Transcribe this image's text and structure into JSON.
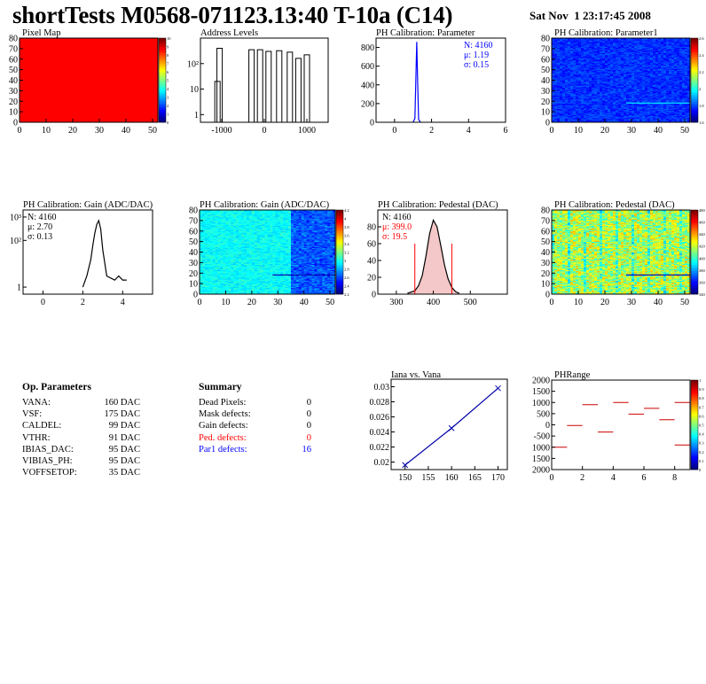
{
  "header": {
    "title": "shortTests M0568-071123.13:40 T-10a (C14)",
    "date": "Sat Nov  1 23:17:45 2008"
  },
  "chart_data": [
    {
      "id": "pixel-map",
      "type": "heatmap",
      "title": "Pixel Map",
      "xlim": [
        0,
        52
      ],
      "ylim": [
        0,
        80
      ],
      "xticks": [
        0,
        10,
        20,
        30,
        40,
        50
      ],
      "yticks": [
        0,
        10,
        20,
        30,
        40,
        50,
        60,
        70,
        80
      ],
      "zlim": [
        0,
        10
      ],
      "zticks": [
        0,
        1,
        2,
        3,
        4,
        5,
        6,
        7,
        8,
        9,
        10
      ],
      "fill_color": "#ff0000"
    },
    {
      "id": "address-levels",
      "type": "bar",
      "title": "Address Levels",
      "xlim": [
        -1500,
        1500
      ],
      "ylog": true,
      "ylim": [
        0.5,
        1000
      ],
      "xticks": [
        -1000,
        0,
        1000
      ],
      "yticks": [
        "1",
        "10",
        "10²"
      ],
      "peaks": [
        {
          "x": -1100,
          "y": 20
        },
        {
          "x": -1050,
          "y": 400
        },
        {
          "x": -300,
          "y": 350
        },
        {
          "x": -100,
          "y": 350
        },
        {
          "x": 100,
          "y": 300
        },
        {
          "x": 350,
          "y": 320
        },
        {
          "x": 600,
          "y": 280
        },
        {
          "x": 800,
          "y": 160
        },
        {
          "x": 1000,
          "y": 220
        }
      ]
    },
    {
      "id": "ph-cal-parameter",
      "type": "line",
      "title": "PH Calibration: Parameter",
      "xlim": [
        -1,
        6
      ],
      "ylim": [
        0,
        900
      ],
      "xticks": [
        0,
        2,
        4,
        6
      ],
      "yticks": [
        0,
        200,
        400,
        600,
        800
      ],
      "x": [
        1.0,
        1.1,
        1.15,
        1.2,
        1.25,
        1.3,
        1.4
      ],
      "y": [
        0,
        40,
        450,
        860,
        420,
        30,
        0
      ],
      "stats": [
        "N: 4160",
        "μ: 1.19",
        "σ: 0.15"
      ],
      "stats_color": "#0000ff"
    },
    {
      "id": "ph-cal-parameter1",
      "type": "heatmap",
      "title": "PH Calibration: Parameter1",
      "xlim": [
        0,
        52
      ],
      "ylim": [
        0,
        80
      ],
      "xticks": [
        0,
        10,
        20,
        30,
        40,
        50
      ],
      "yticks": [
        0,
        10,
        20,
        30,
        40,
        50,
        60,
        70,
        80
      ],
      "zticks": [
        "1.6",
        "1.8",
        "2",
        "2.2",
        "2.4",
        "2.6"
      ]
    },
    {
      "id": "ph-cal-gain-hist",
      "type": "line",
      "title": "PH Calibration: Gain (ADC/DAC)",
      "xlim": [
        -1,
        5.5
      ],
      "ylog": true,
      "ylim": [
        0.5,
        2000
      ],
      "xticks": [
        0,
        2,
        4
      ],
      "yticks": [
        "1",
        "10²",
        "10³"
      ],
      "x": [
        2.0,
        2.2,
        2.4,
        2.5,
        2.6,
        2.7,
        2.8,
        2.9,
        3.0,
        3.2,
        3.6,
        3.8,
        4.0,
        4.2
      ],
      "y": [
        1,
        3,
        15,
        60,
        200,
        480,
        700,
        300,
        40,
        3,
        2,
        3,
        2,
        2
      ],
      "stats": [
        "N: 4160",
        "μ: 2.70",
        "σ: 0.13"
      ],
      "stats_color": "#000000"
    },
    {
      "id": "ph-cal-gain-map",
      "type": "heatmap",
      "title": "PH Calibration: Gain (ADC/DAC)",
      "xlim": [
        0,
        52
      ],
      "ylim": [
        0,
        80
      ],
      "xticks": [
        0,
        10,
        20,
        30,
        40,
        50
      ],
      "yticks": [
        0,
        10,
        20,
        30,
        40,
        50,
        60,
        70,
        80
      ],
      "zticks": [
        "2.2",
        "2.4",
        "2.6",
        "2.8",
        "3",
        "3.2",
        "3.4",
        "3.6",
        "3.8",
        "4",
        "4.2"
      ]
    },
    {
      "id": "ph-cal-pedestal-hist",
      "type": "line",
      "title": "PH Calibration: Pedestal (DAC)",
      "xlim": [
        250,
        600
      ],
      "ylim": [
        0,
        100
      ],
      "xticks": [
        300,
        400,
        500
      ],
      "yticks": [
        0,
        20,
        40,
        60,
        80
      ],
      "x": [
        330,
        350,
        360,
        370,
        380,
        390,
        400,
        410,
        420,
        430,
        440,
        450,
        460,
        470
      ],
      "y": [
        1,
        4,
        10,
        22,
        45,
        72,
        88,
        80,
        58,
        35,
        18,
        8,
        3,
        1
      ],
      "cuts": [
        {
          "x": 350,
          "y": 60
        },
        {
          "x": 450,
          "y": 60
        }
      ],
      "stats": [
        "N: 4160",
        "μ: 399.0",
        "σ: 19.5"
      ],
      "stats_color": "#ff0000"
    },
    {
      "id": "ph-cal-pedestal-map",
      "type": "heatmap",
      "title": "PH Calibration: Pedestal (DAC)",
      "xlim": [
        0,
        52
      ],
      "ylim": [
        0,
        80
      ],
      "xticks": [
        0,
        10,
        20,
        30,
        40,
        50
      ],
      "yticks": [
        0,
        10,
        20,
        30,
        40,
        50,
        60,
        70,
        80
      ],
      "zticks": [
        "340",
        "360",
        "380",
        "400",
        "420",
        "440",
        "460",
        "480"
      ]
    },
    {
      "id": "iana-vana",
      "type": "scatter",
      "title": "Iana vs. Vana",
      "xlim": [
        147,
        172
      ],
      "ylim": [
        0.019,
        0.031
      ],
      "xticks": [
        150,
        155,
        160,
        165,
        170
      ],
      "yticks": [
        0.02,
        0.022,
        0.024,
        0.026,
        0.028,
        0.03
      ],
      "x": [
        150,
        160,
        170
      ],
      "y": [
        0.0196,
        0.0245,
        0.0298
      ]
    },
    {
      "id": "phrange",
      "type": "bar",
      "title": "PHRange",
      "xlim": [
        0,
        9
      ],
      "ylim": [
        -2000,
        2000
      ],
      "xticks": [
        0,
        2,
        4,
        6,
        8
      ],
      "yticks": [
        -2000,
        -1500,
        -1000,
        -500,
        0,
        500,
        1000,
        1500,
        2000
      ],
      "zticks": [
        "0",
        "0.1",
        "0.2",
        "0.3",
        "0.4",
        "0.5",
        "0.6",
        "0.7",
        "0.8",
        "0.9",
        "1"
      ],
      "segments": [
        {
          "x0": 0,
          "x1": 1,
          "y": -1000
        },
        {
          "x0": 1,
          "x1": 2,
          "y": -30
        },
        {
          "x0": 2,
          "x1": 3,
          "y": 900
        },
        {
          "x0": 3,
          "x1": 4,
          "y": -320
        },
        {
          "x0": 4,
          "x1": 5,
          "y": 1000
        },
        {
          "x0": 5,
          "x1": 6,
          "y": 480
        },
        {
          "x0": 6,
          "x1": 7,
          "y": 740
        },
        {
          "x0": 7,
          "x1": 8,
          "y": 230
        },
        {
          "x0": 8,
          "x1": 9,
          "y": 1000
        },
        {
          "x0": 8,
          "x1": 9,
          "y": -900
        }
      ]
    }
  ],
  "op_params": {
    "title": "Op. Parameters",
    "rows": [
      {
        "k": "VANA:",
        "v": "160 DAC"
      },
      {
        "k": "VSF:",
        "v": "175 DAC"
      },
      {
        "k": "CALDEL:",
        "v": "99 DAC"
      },
      {
        "k": "VTHR:",
        "v": "91 DAC"
      },
      {
        "k": "IBIAS_DAC:",
        "v": "95 DAC"
      },
      {
        "k": "VIBIAS_PH:",
        "v": "95 DAC"
      },
      {
        "k": "VOFFSETOP:",
        "v": "35 DAC"
      }
    ]
  },
  "summary": {
    "title": "Summary",
    "rows": [
      {
        "k": "Dead Pixels:",
        "v": "0",
        "color": "#000000"
      },
      {
        "k": "Mask defects:",
        "v": "0",
        "color": "#000000"
      },
      {
        "k": "Gain defects:",
        "v": "0",
        "color": "#000000"
      },
      {
        "k": "Ped. defects:",
        "v": "0",
        "color": "#ff0000"
      },
      {
        "k": "Par1 defects:",
        "v": "16",
        "color": "#0000ff"
      }
    ]
  }
}
